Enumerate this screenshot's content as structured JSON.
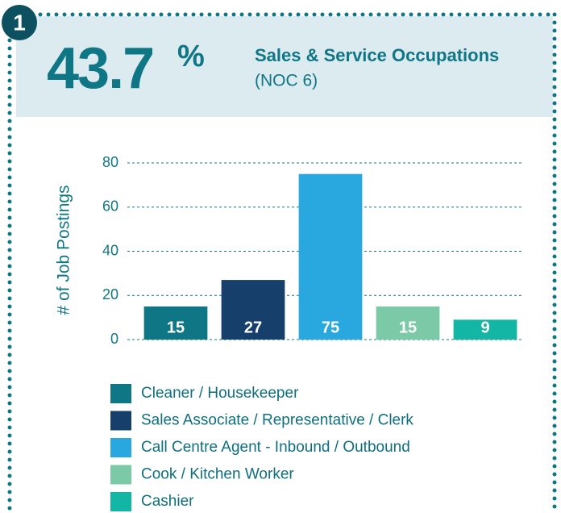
{
  "header": {
    "badge": "1",
    "value": "43.7",
    "unit": "%",
    "title": "Sales & Service Occupations",
    "subtitle": "(NOC 6)"
  },
  "chart_data": {
    "type": "bar",
    "ylabel": "# of Job Postings",
    "categories": [
      "Cleaner / Housekeeper",
      "Sales Associate / Representative / Clerk",
      "Call Centre Agent - Inbound / Outbound",
      "Cook / Kitchen Worker",
      "Cashier"
    ],
    "values": [
      15,
      27,
      75,
      15,
      9
    ],
    "colors": [
      "#0f7686",
      "#163f6b",
      "#29a8e0",
      "#7cc9a8",
      "#13b5a4"
    ],
    "ylim": [
      0,
      80
    ],
    "yticks": [
      0,
      20,
      40,
      60,
      80
    ],
    "grid": true
  }
}
